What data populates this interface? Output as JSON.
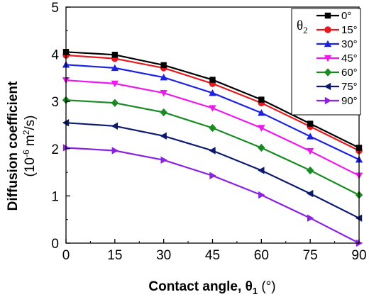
{
  "chart_data": {
    "type": "line",
    "x": [
      0,
      15,
      30,
      45,
      60,
      75,
      90
    ],
    "xlim": [
      0,
      90
    ],
    "ylim": [
      0,
      5
    ],
    "xticks": [
      "0",
      "15",
      "30",
      "45",
      "60",
      "75",
      "90"
    ],
    "yticks": [
      "0",
      "1",
      "2",
      "3",
      "4",
      "5"
    ],
    "xlabel": {
      "main": "Contact angle, ",
      "symbol": "θ",
      "subscript": "1",
      "unit": " (°)"
    },
    "ylabel": {
      "line1": "Diffusion coefficient",
      "line2_open": "(10",
      "line2_exp": "-6",
      "line2_mid": " m",
      "line2_exp2": "2",
      "line2_close": "/s)"
    },
    "legend": {
      "title_symbol": "θ",
      "title_subscript": "2",
      "position": "top-right"
    },
    "grid": false,
    "series": [
      {
        "name": "0°",
        "color": "#000000",
        "marker": "square",
        "values": [
          4.05,
          3.99,
          3.77,
          3.46,
          3.04,
          2.53,
          2.02
        ]
      },
      {
        "name": "15°",
        "color": "#e8191c",
        "marker": "circle",
        "values": [
          3.98,
          3.91,
          3.71,
          3.38,
          2.97,
          2.47,
          1.96
        ]
      },
      {
        "name": "30°",
        "color": "#1c22e0",
        "marker": "triangle-up",
        "values": [
          3.78,
          3.71,
          3.51,
          3.18,
          2.76,
          2.26,
          1.77
        ]
      },
      {
        "name": "45°",
        "color": "#ec1aec",
        "marker": "triangle-down",
        "values": [
          3.45,
          3.38,
          3.18,
          2.86,
          2.44,
          1.95,
          1.43
        ]
      },
      {
        "name": "60°",
        "color": "#1a8a22",
        "marker": "diamond",
        "values": [
          3.03,
          2.97,
          2.77,
          2.44,
          2.02,
          1.54,
          1.02
        ]
      },
      {
        "name": "75°",
        "color": "#0c1a6e",
        "marker": "triangle-left",
        "values": [
          2.55,
          2.48,
          2.27,
          1.96,
          1.54,
          1.05,
          0.53
        ]
      },
      {
        "name": "90°",
        "color": "#8a22e0",
        "marker": "triangle-right",
        "values": [
          2.02,
          1.96,
          1.76,
          1.43,
          1.02,
          0.53,
          0.0
        ]
      }
    ]
  }
}
